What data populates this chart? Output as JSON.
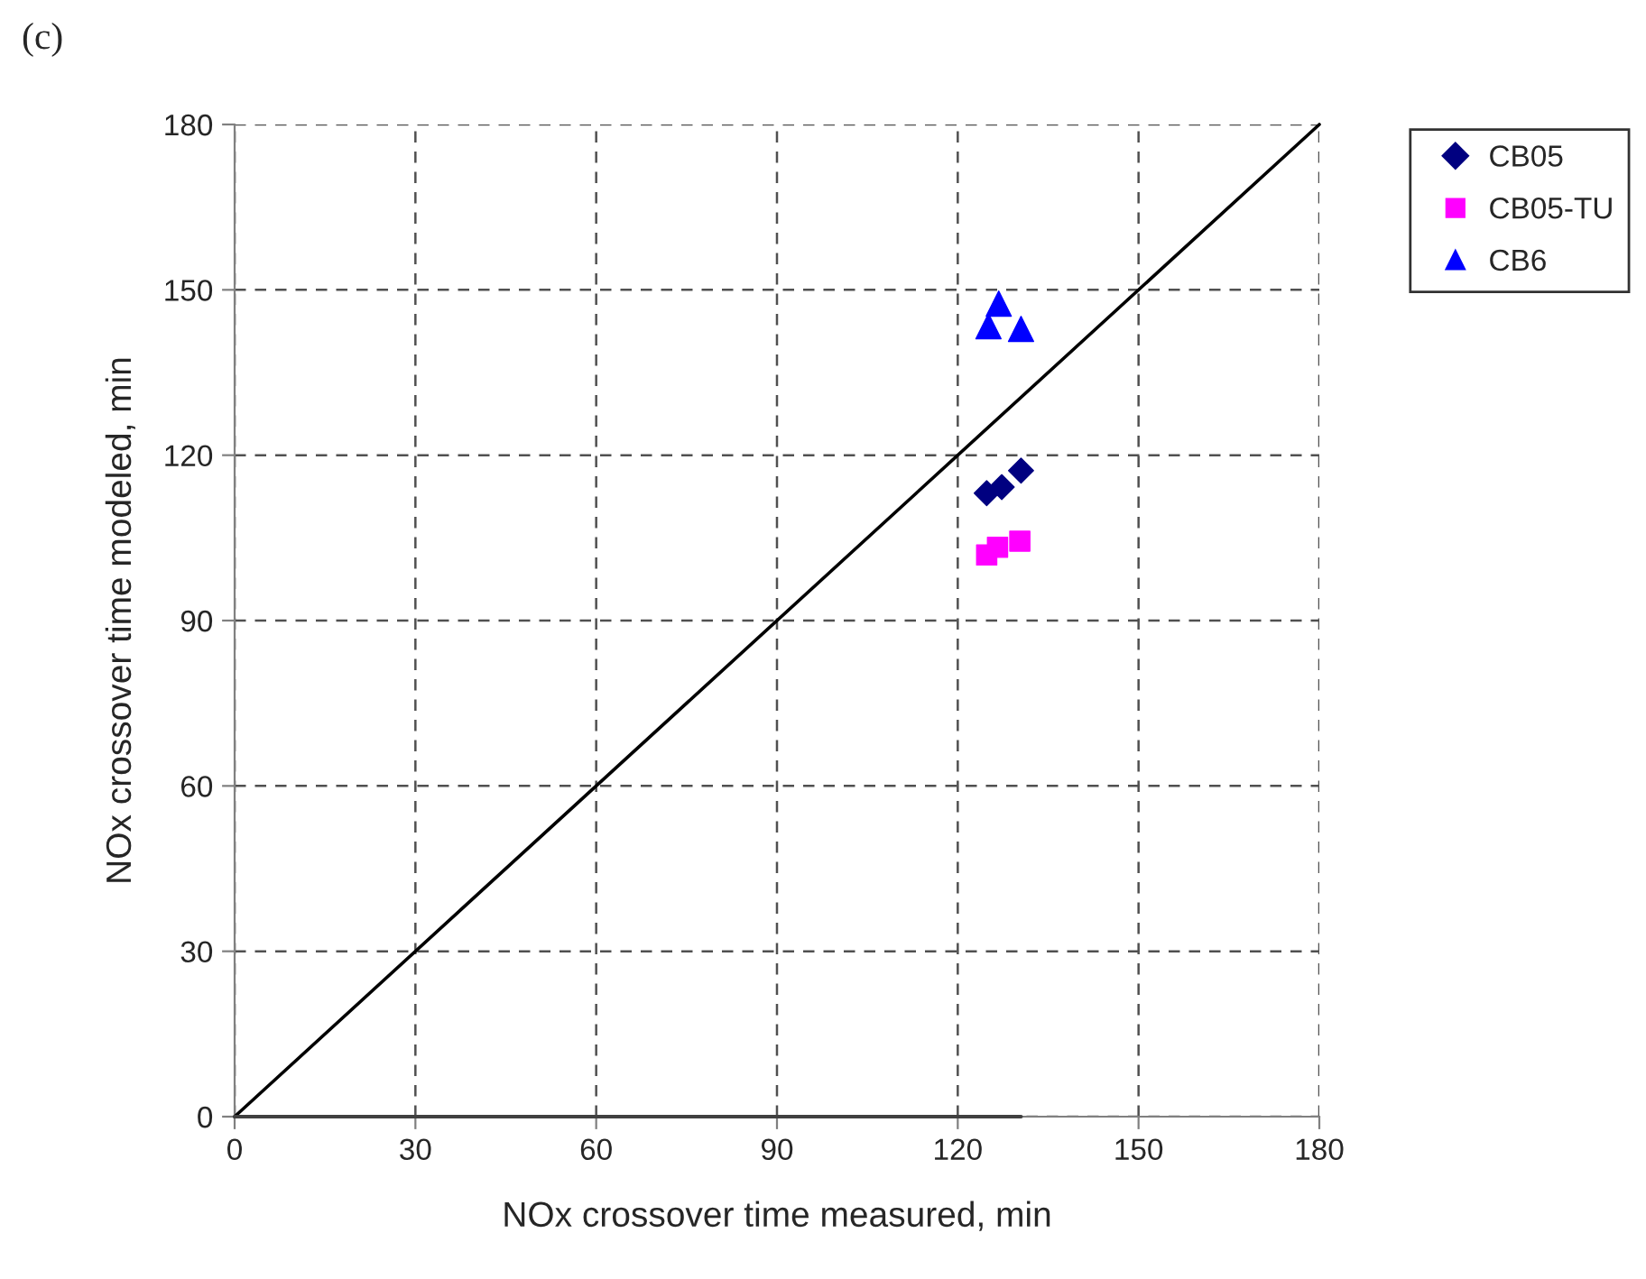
{
  "chart_data": {
    "type": "scatter",
    "title": "(c)",
    "xlabel": "NOx crossover time measured, min",
    "ylabel": "NOx crossover time modeled, min",
    "xlim": [
      0,
      180
    ],
    "ylim": [
      0,
      180
    ],
    "xticks": [
      0,
      30,
      60,
      90,
      120,
      150,
      180
    ],
    "yticks": [
      0,
      30,
      60,
      90,
      120,
      150,
      180
    ],
    "grid": true,
    "legend": "top right",
    "series": [
      {
        "type": "line",
        "color": "#000000",
        "x": [
          0,
          180
        ],
        "values": [
          0,
          180
        ],
        "marker": "none",
        "line_style": "solid"
      },
      {
        "type": "line",
        "color": "#404040",
        "x": [
          0,
          130.5
        ],
        "values": [
          0,
          0
        ],
        "marker": "none",
        "line_style": "solid"
      },
      {
        "name": "CB05",
        "color": "#000080",
        "marker": "diamond",
        "x": [
          124.8,
          127.3,
          130.5
        ],
        "values": [
          113.1,
          114.2,
          117.2
        ]
      },
      {
        "name": "CB05-TU",
        "color": "#ff00ff",
        "marker": "square",
        "x": [
          124.8,
          126.6,
          130.3
        ],
        "values": [
          101.9,
          103.3,
          104.4
        ]
      },
      {
        "name": "CB6",
        "color": "#0000ff",
        "marker": "triangle",
        "x": [
          125.1,
          126.8,
          130.5
        ],
        "values": [
          143.4,
          147.5,
          142.9
        ]
      }
    ]
  }
}
